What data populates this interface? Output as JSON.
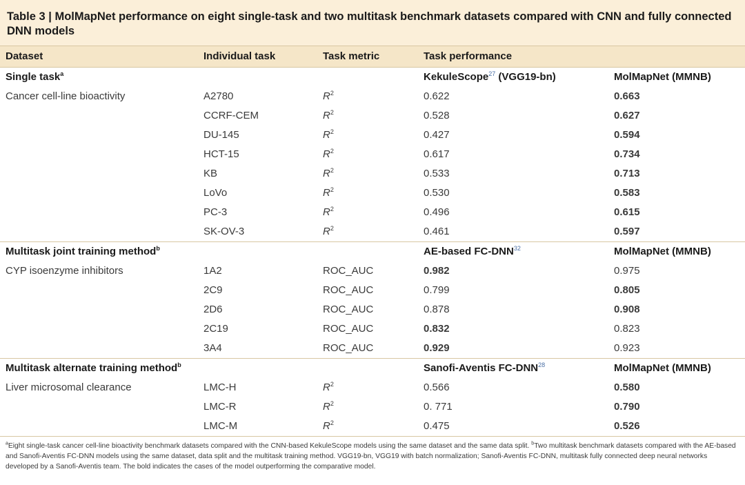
{
  "title": {
    "label": "Table 3",
    "separator": "|",
    "text": "MolMapNet performance on eight single-task and two multitask benchmark datasets compared with CNN and fully connected DNN models"
  },
  "columns": [
    "Dataset",
    "Individual task",
    "Task metric",
    "Task performance"
  ],
  "sections": [
    {
      "name": "Single task",
      "sup": "a",
      "model_a": "KekuleScope",
      "model_a_ref": "27",
      "model_a_suffix": " (VGG19-bn)",
      "model_b": "MolMapNet (MMNB)",
      "dataset": "Cancer cell-line bioactivity",
      "rows": [
        {
          "task": "A2780",
          "metric": "R",
          "metric_sup": "2",
          "a": "0.622",
          "b": "0.663",
          "bold": "b"
        },
        {
          "task": "CCRF-CEM",
          "metric": "R",
          "metric_sup": "2",
          "a": "0.528",
          "b": "0.627",
          "bold": "b"
        },
        {
          "task": "DU-145",
          "metric": "R",
          "metric_sup": "2",
          "a": "0.427",
          "b": "0.594",
          "bold": "b"
        },
        {
          "task": "HCT-15",
          "metric": "R",
          "metric_sup": "2",
          "a": "0.617",
          "b": "0.734",
          "bold": "b"
        },
        {
          "task": "KB",
          "metric": "R",
          "metric_sup": "2",
          "a": "0.533",
          "b": "0.713",
          "bold": "b"
        },
        {
          "task": "LoVo",
          "metric": "R",
          "metric_sup": "2",
          "a": "0.530",
          "b": "0.583",
          "bold": "b"
        },
        {
          "task": "PC-3",
          "metric": "R",
          "metric_sup": "2",
          "a": "0.496",
          "b": "0.615",
          "bold": "b"
        },
        {
          "task": "SK-OV-3",
          "metric": "R",
          "metric_sup": "2",
          "a": "0.461",
          "b": "0.597",
          "bold": "b"
        }
      ]
    },
    {
      "name": "Multitask joint training method",
      "sup": "b",
      "model_a": "AE-based FC-DNN",
      "model_a_ref": "32",
      "model_a_suffix": "",
      "model_b": "MolMapNet (MMNB)",
      "dataset": "CYP isoenzyme inhibitors",
      "rows": [
        {
          "task": "1A2",
          "metric": "ROC_AUC",
          "metric_sup": "",
          "a": "0.982",
          "b": "0.975",
          "bold": "a"
        },
        {
          "task": "2C9",
          "metric": "ROC_AUC",
          "metric_sup": "",
          "a": "0.799",
          "b": "0.805",
          "bold": "b"
        },
        {
          "task": "2D6",
          "metric": "ROC_AUC",
          "metric_sup": "",
          "a": "0.878",
          "b": "0.908",
          "bold": "b"
        },
        {
          "task": "2C19",
          "metric": "ROC_AUC",
          "metric_sup": "",
          "a": "0.832",
          "b": "0.823",
          "bold": "a"
        },
        {
          "task": "3A4",
          "metric": "ROC_AUC",
          "metric_sup": "",
          "a": "0.929",
          "b": "0.923",
          "bold": "a"
        }
      ]
    },
    {
      "name": "Multitask alternate training method",
      "sup": "b",
      "model_a": "Sanofi-Aventis FC-DNN",
      "model_a_ref": "28",
      "model_a_suffix": "",
      "model_b": "MolMapNet (MMNB)",
      "dataset": "Liver microsomal clearance",
      "rows": [
        {
          "task": "LMC-H",
          "metric": "R",
          "metric_sup": "2",
          "a": "0.566",
          "b": "0.580",
          "bold": "b"
        },
        {
          "task": "LMC-R",
          "metric": "R",
          "metric_sup": "2",
          "a": "0. 771",
          "b": "0.790",
          "bold": "b"
        },
        {
          "task": "LMC-M",
          "metric": "R",
          "metric_sup": "2",
          "a": "0.475",
          "b": "0.526",
          "bold": "b"
        }
      ]
    }
  ],
  "footnote": {
    "a_mark": "a",
    "a_text": "Eight single-task cancer cell-line bioactivity benchmark datasets compared with the CNN-based KekuleScope models using the same dataset and the same data split. ",
    "b_mark": "b",
    "b_text": "Two multitask benchmark datasets compared with the AE-based and Sanofi-Aventis FC-DNN models using the same dataset, data split and the multitask training method. VGG19-bn, VGG19 with batch normalization; Sanofi-Aventis FC-DNN, multitask fully connected deep neural networks developed by a Sanofi-Aventis team. The bold indicates the cases of the model outperforming the comparative model."
  }
}
